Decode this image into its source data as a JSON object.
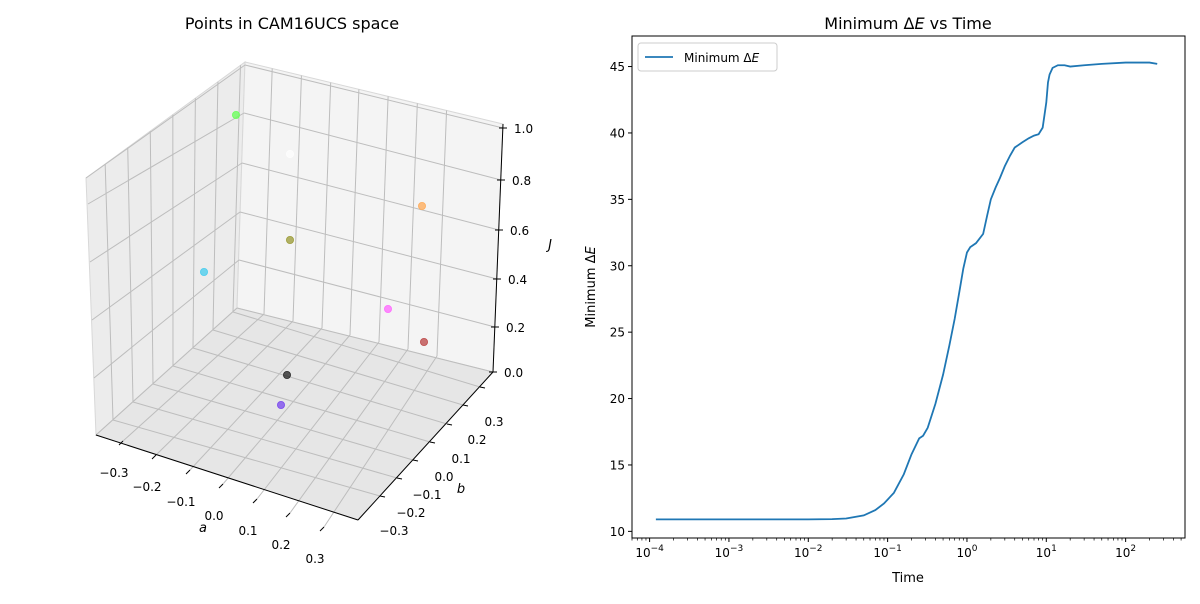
{
  "chart_data": [
    {
      "type": "scatter3d",
      "title": "Points in CAM16UCS space",
      "xlabel": "a",
      "ylabel": "b",
      "zlabel": "J",
      "xticks": [
        "−0.3",
        "−0.2",
        "−0.1",
        "0.0",
        "0.1",
        "0.2",
        "0.3"
      ],
      "yticks": [
        "−0.3",
        "−0.2",
        "−0.1",
        "0.0",
        "0.1",
        "0.2",
        "0.3"
      ],
      "zticks": [
        "0.0",
        "0.2",
        "0.4",
        "0.6",
        "0.8",
        "1.0"
      ],
      "points": [
        {
          "color": "#66ff55"
        },
        {
          "color": "#fdfdfd"
        },
        {
          "color": "#ffaa55"
        },
        {
          "color": "#999933"
        },
        {
          "color": "#44ccee"
        },
        {
          "color": "#ff66ff"
        },
        {
          "color": "#bb4444"
        },
        {
          "color": "#222222"
        },
        {
          "color": "#7744ee"
        }
      ]
    },
    {
      "type": "line",
      "title": "Minimum ΔE vs Time",
      "title_prefix": "Minimum Δ",
      "title_var": "E",
      "title_suffix": " vs Time",
      "xlabel": "Time",
      "ylabel_prefix": "Minimum Δ",
      "ylabel_var": "E",
      "xscale": "log",
      "xlim": [
        6e-05,
        560
      ],
      "ylim": [
        9.5,
        47.3
      ],
      "yticks": [
        10,
        15,
        20,
        25,
        30,
        35,
        40,
        45
      ],
      "xticks_exp": [
        -4,
        -3,
        -2,
        -1,
        0,
        1,
        2
      ],
      "legend": {
        "label_prefix": "Minimum Δ",
        "label_var": "E",
        "placement": "upper-left"
      },
      "series": [
        {
          "name": "Minimum ΔE",
          "color": "#1f77b4",
          "x": [
            0.00012,
            0.001,
            0.01,
            0.02,
            0.03,
            0.05,
            0.07,
            0.09,
            0.12,
            0.16,
            0.2,
            0.25,
            0.28,
            0.32,
            0.4,
            0.5,
            0.6,
            0.7,
            0.8,
            0.9,
            1.0,
            1.1,
            1.3,
            1.6,
            1.8,
            2.0,
            2.3,
            2.6,
            3.0,
            3.5,
            4.0,
            5.0,
            6.0,
            7.0,
            8.0,
            9.0,
            10.0,
            10.5,
            11.0,
            12.0,
            14.0,
            17.0,
            20.0,
            30.0,
            50.0,
            100.0,
            150.0,
            200.0,
            250.0
          ],
          "y": [
            10.9,
            10.9,
            10.9,
            10.92,
            10.97,
            11.2,
            11.6,
            12.1,
            12.9,
            14.3,
            15.8,
            17.0,
            17.2,
            17.8,
            19.6,
            21.8,
            24.0,
            26.0,
            28.0,
            29.8,
            31.0,
            31.4,
            31.7,
            32.4,
            33.8,
            35.0,
            35.9,
            36.6,
            37.5,
            38.3,
            38.9,
            39.3,
            39.6,
            39.8,
            39.9,
            40.4,
            42.3,
            43.8,
            44.4,
            44.9,
            45.1,
            45.1,
            45.0,
            45.1,
            45.2,
            45.3,
            45.3,
            45.3,
            45.2
          ]
        }
      ]
    }
  ]
}
